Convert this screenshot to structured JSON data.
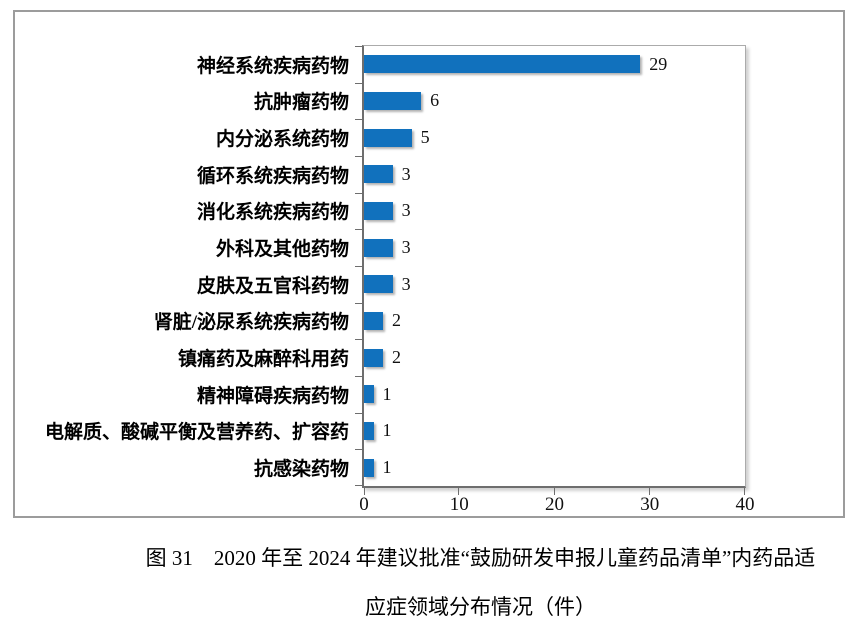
{
  "figure": {
    "caption_line1": "图 31　2020 年至 2024 年建议批准“鼓励研发申报儿童药品清单”内药品适",
    "caption_line2": "应症领域分布情况（件）"
  },
  "chart_data": {
    "type": "bar",
    "orientation": "horizontal",
    "title": "图 31 2020 年至 2024 年建议批准“鼓励研发申报儿童药品清单”内药品适应症领域分布情况（件）",
    "categories": [
      "神经系统疾病药物",
      "抗肿瘤药物",
      "内分泌系统药物",
      "循环系统疾病药物",
      "消化系统疾病药物",
      "外科及其他药物",
      "皮肤及五官科药物",
      "肾脏/泌尿系统疾病药物",
      "镇痛药及麻醉科用药",
      "精神障碍疾病药物",
      "电解质、酸碱平衡及营养药、扩容药",
      "抗感染药物"
    ],
    "values": [
      29,
      6,
      5,
      3,
      3,
      3,
      3,
      2,
      2,
      1,
      1,
      1
    ],
    "x_ticks": [
      0,
      10,
      20,
      30,
      40
    ],
    "xlim": [
      0,
      40
    ],
    "grid": false,
    "legend": false,
    "bar_color": "#1171BD",
    "axis_color": "#6e6e6e",
    "frame_color": "#9c9c9c"
  }
}
